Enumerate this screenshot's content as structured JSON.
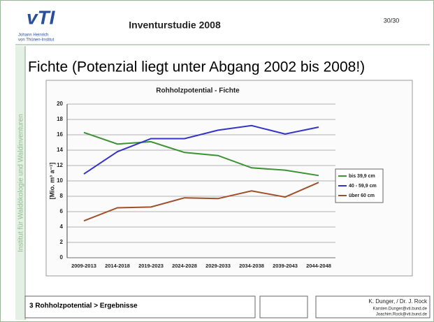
{
  "header": {
    "logo": "vTI",
    "logo_line1": "Johann Heinrich",
    "logo_line2": "von Thünen-Institut",
    "title": "Inventurstudie 2008",
    "page": "30/30"
  },
  "side_text": "Institut für Waldökologie und Waldinventuren",
  "heading": "Fichte (Potenzial liegt unter Abgang 2002 bis 2008!)",
  "footer": {
    "section": "3 Rohholzpotential > Ergebnisse",
    "authors": "K. Dunger, / Dr. J. Rock",
    "email1": "Karsten.Dunger@vti.bund.de",
    "email2": "Joachim.Rock@vti.bund.de"
  },
  "chart_data": {
    "type": "line",
    "title": "Rohholzpotential - Fichte",
    "y_label": "[Mio. m³ a⁻¹]",
    "categories": [
      "2009-2013",
      "2014-2018",
      "2019-2023",
      "2024-2028",
      "2029-2033",
      "2034-2038",
      "2039-2043",
      "2044-2048"
    ],
    "series": [
      {
        "name": "bis 39,9 cm",
        "color": "#3c9234",
        "values": [
          16.3,
          14.8,
          15.1,
          13.7,
          13.3,
          11.7,
          11.4,
          10.7
        ]
      },
      {
        "name": "40 - 59,9 cm",
        "color": "#3434c8",
        "values": [
          10.9,
          13.8,
          15.5,
          15.5,
          16.6,
          17.2,
          16.1,
          17.0
        ]
      },
      {
        "name": "über 60 cm",
        "color": "#a0502a",
        "values": [
          4.8,
          6.5,
          6.6,
          7.8,
          7.7,
          8.7,
          7.9,
          9.8
        ]
      }
    ],
    "ylim": [
      0,
      20
    ],
    "yticks": [
      0,
      2,
      4,
      6,
      8,
      10,
      12,
      14,
      16,
      18,
      20
    ],
    "grid": true,
    "legend": "right"
  }
}
